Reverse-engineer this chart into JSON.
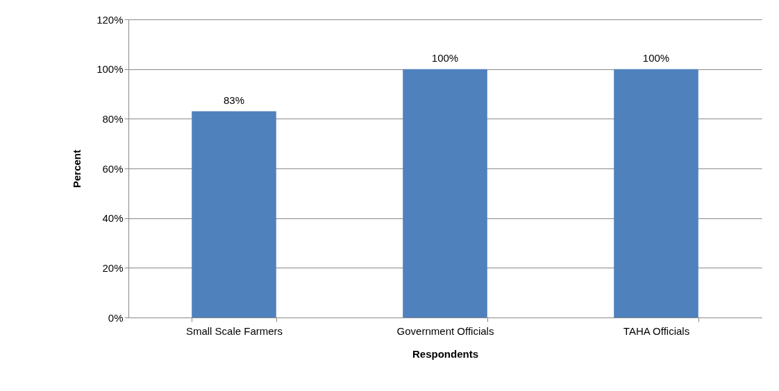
{
  "chart_data": {
    "type": "bar",
    "xlabel": "Respondents",
    "ylabel": "Percent",
    "categories": [
      "Small Scale Farmers",
      "Government Officials",
      "TAHA Officials"
    ],
    "values": [
      83,
      100,
      100
    ],
    "value_labels": [
      "83%",
      "100%",
      "100%"
    ],
    "color": "#4f81bd",
    "ylim": [
      0,
      120
    ],
    "yticks": [
      {
        "value": 0,
        "label": "0%"
      },
      {
        "value": 20,
        "label": "20%"
      },
      {
        "value": 40,
        "label": "40%"
      },
      {
        "value": 60,
        "label": "60%"
      },
      {
        "value": 80,
        "label": "80%"
      },
      {
        "value": 100,
        "label": "100%"
      },
      {
        "value": 120,
        "label": "120%"
      }
    ],
    "grid": "y"
  }
}
